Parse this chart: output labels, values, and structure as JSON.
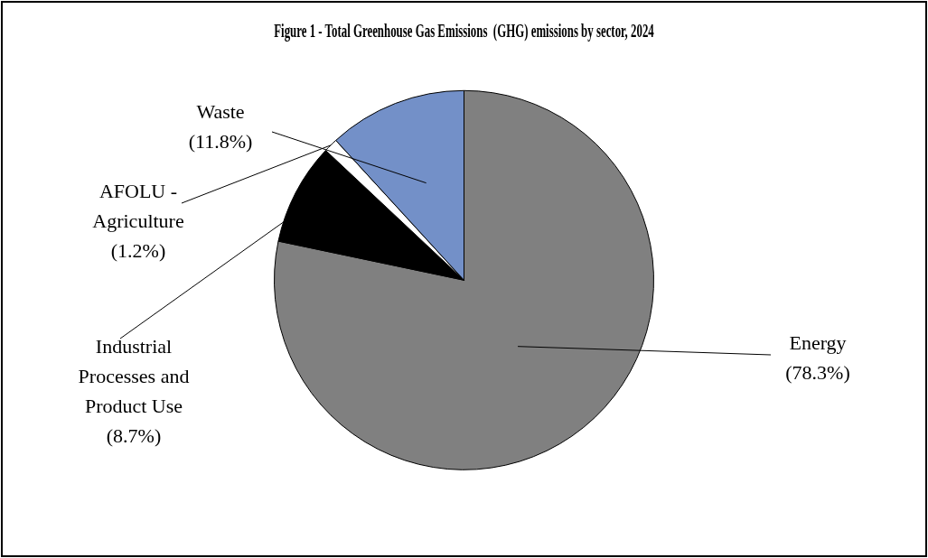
{
  "chart_data": {
    "type": "pie",
    "title": "Figure 1 - Total Greenhouse Gas Emissions  (GHG) emissions by sector, 2024",
    "categories": [
      "Energy",
      "Industrial Processes and Product Use",
      "AFOLU - Agriculture",
      "Waste"
    ],
    "values": [
      78.3,
      8.7,
      1.2,
      11.8
    ],
    "colors": [
      "#808080",
      "#000000",
      "#ffffff",
      "#7390c8"
    ],
    "value_labels": [
      "(78.3%)",
      "(8.7%)",
      "(1.2%)",
      "(11.8%)"
    ],
    "legend": false
  }
}
